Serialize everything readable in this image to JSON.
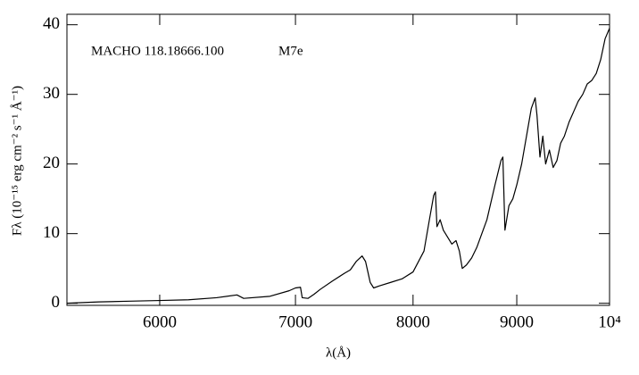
{
  "chart_data": {
    "type": "line",
    "xlabel": "λ(Å)",
    "ylabel": "Fλ (10⁻¹⁵ erg cm⁻² s⁻¹ Å⁻¹)",
    "annotations": [
      "MACHO 118.18666.100",
      "M7e"
    ],
    "xscale": "log",
    "xlim": [
      5400,
      10000
    ],
    "xticks": [
      6000,
      7000,
      8000,
      9000,
      {
        "value": 10000,
        "label": "10⁴"
      }
    ],
    "ylim": [
      -0.3,
      41.5
    ],
    "yticks": [
      0,
      10,
      20,
      30,
      40
    ],
    "color": "#000000",
    "x": [
      5400,
      5600,
      5800,
      6000,
      6200,
      6400,
      6550,
      6600,
      6800,
      6950,
      7000,
      7040,
      7054,
      7100,
      7150,
      7200,
      7300,
      7400,
      7450,
      7500,
      7550,
      7580,
      7600,
      7620,
      7650,
      7700,
      7800,
      7900,
      8000,
      8100,
      8150,
      8190,
      8206,
      8220,
      8250,
      8280,
      8320,
      8360,
      8400,
      8432,
      8460,
      8500,
      8550,
      8600,
      8700,
      8780,
      8840,
      8859,
      8880,
      8920,
      8960,
      9000,
      9050,
      9100,
      9150,
      9190,
      9209,
      9240,
      9270,
      9300,
      9340,
      9380,
      9420,
      9460,
      9500,
      9550,
      9600,
      9650,
      9700,
      9750,
      9800,
      9850,
      9900,
      9950,
      10000
    ],
    "values": [
      0.0,
      0.2,
      0.3,
      0.4,
      0.5,
      0.8,
      1.2,
      0.7,
      1.0,
      1.8,
      2.2,
      2.3,
      0.8,
      0.7,
      1.3,
      2.0,
      3.2,
      4.3,
      4.8,
      6.0,
      6.8,
      6.0,
      4.5,
      3.0,
      2.2,
      2.5,
      3.0,
      3.5,
      4.5,
      7.5,
      12.0,
      15.5,
      16.0,
      11.0,
      12.0,
      10.5,
      9.5,
      8.5,
      9.0,
      7.5,
      5.0,
      5.5,
      6.5,
      8.0,
      12.0,
      17.0,
      20.5,
      21.0,
      10.5,
      14.0,
      15.0,
      17.0,
      20.0,
      24.0,
      28.0,
      29.5,
      27.0,
      21.0,
      24.0,
      20.0,
      22.0,
      19.5,
      20.5,
      23.0,
      24.0,
      26.0,
      27.5,
      29.0,
      30.0,
      31.5,
      32.0,
      33.0,
      35.0,
      38.0,
      39.5
    ]
  }
}
